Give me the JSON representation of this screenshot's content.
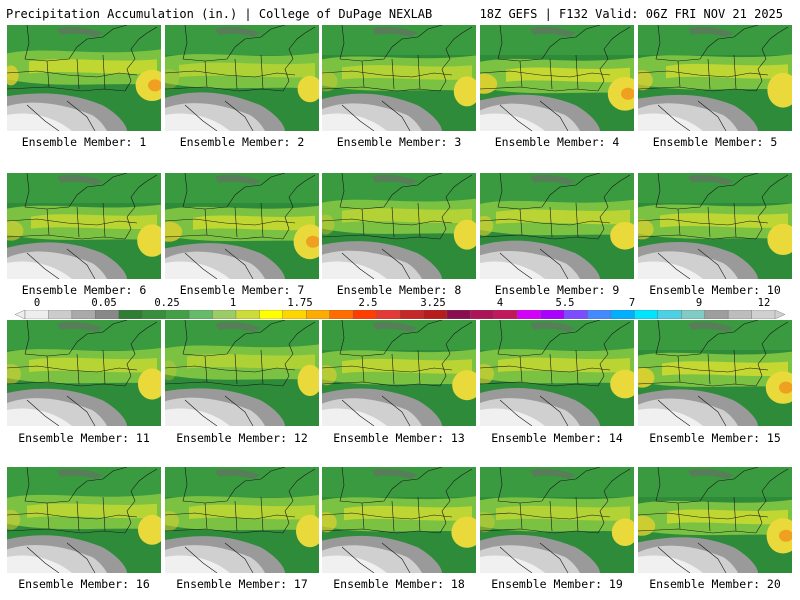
{
  "header": {
    "title_left": "Precipitation Accumulation (in.) | College of DuPage NEXLAB",
    "title_right": "18Z GEFS | F132 Valid: 06Z FRI NOV 21 2025"
  },
  "panels": [
    {
      "label": "Ensemble Member: 1"
    },
    {
      "label": "Ensemble Member: 2"
    },
    {
      "label": "Ensemble Member: 3"
    },
    {
      "label": "Ensemble Member: 4"
    },
    {
      "label": "Ensemble Member: 5"
    },
    {
      "label": "Ensemble Member: 6"
    },
    {
      "label": "Ensemble Member: 7"
    },
    {
      "label": "Ensemble Member: 8"
    },
    {
      "label": "Ensemble Member: 9"
    },
    {
      "label": "Ensemble Member: 10"
    },
    {
      "label": "Ensemble Member: 11"
    },
    {
      "label": "Ensemble Member: 12"
    },
    {
      "label": "Ensemble Member: 13"
    },
    {
      "label": "Ensemble Member: 14"
    },
    {
      "label": "Ensemble Member: 15"
    },
    {
      "label": "Ensemble Member: 16"
    },
    {
      "label": "Ensemble Member: 17"
    },
    {
      "label": "Ensemble Member: 18"
    },
    {
      "label": "Ensemble Member: 19"
    },
    {
      "label": "Ensemble Member: 20"
    }
  ],
  "colorbar": {
    "labels": [
      "0",
      "0.05",
      "0.25",
      "1",
      "1.75",
      "2.5",
      "3.25",
      "4",
      "5.5",
      "7",
      "9",
      "12"
    ],
    "colors": [
      "#eeeeee",
      "#cccccc",
      "#aaaaaa",
      "#888888",
      "#2e7d32",
      "#388e3c",
      "#43a047",
      "#66bb6a",
      "#9ccc65",
      "#cddc39",
      "#ffff00",
      "#ffd600",
      "#ffab00",
      "#ff6d00",
      "#ff3d00",
      "#e53935",
      "#c62828",
      "#b71c1c",
      "#880e4f",
      "#ad1457",
      "#c2185b",
      "#d500f9",
      "#aa00ff",
      "#7c4dff",
      "#448aff",
      "#00b0ff",
      "#00e5ff",
      "#4dd0e1",
      "#80cbc4",
      "#9e9e9e",
      "#bdbdbd",
      "#d0d0d0"
    ]
  }
}
